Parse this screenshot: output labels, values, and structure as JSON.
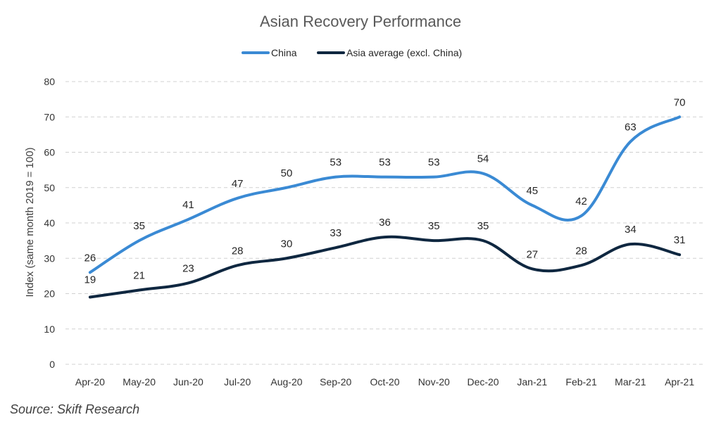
{
  "chart_data": {
    "type": "line",
    "title": "Asian Recovery Performance",
    "ylabel": "Index (same month 2019 = 100)",
    "xlabel": "",
    "ylim": [
      0,
      80
    ],
    "yticks": [
      0,
      10,
      20,
      30,
      40,
      50,
      60,
      70,
      80
    ],
    "grid": true,
    "legend_position": "top-center",
    "categories": [
      "Apr-20",
      "May-20",
      "Jun-20",
      "Jul-20",
      "Aug-20",
      "Sep-20",
      "Oct-20",
      "Nov-20",
      "Dec-20",
      "Jan-21",
      "Feb-21",
      "Mar-21",
      "Apr-21"
    ],
    "series": [
      {
        "name": "China",
        "color": "#3a8ad4",
        "values": [
          26,
          35,
          41,
          47,
          50,
          53,
          53,
          53,
          54,
          45,
          42,
          63,
          70
        ]
      },
      {
        "name": "Asia average (excl. China)",
        "color": "#0f2740",
        "values": [
          19,
          21,
          23,
          28,
          30,
          33,
          36,
          35,
          35,
          27,
          28,
          34,
          31
        ]
      }
    ]
  },
  "source": "Source: Skift Research"
}
